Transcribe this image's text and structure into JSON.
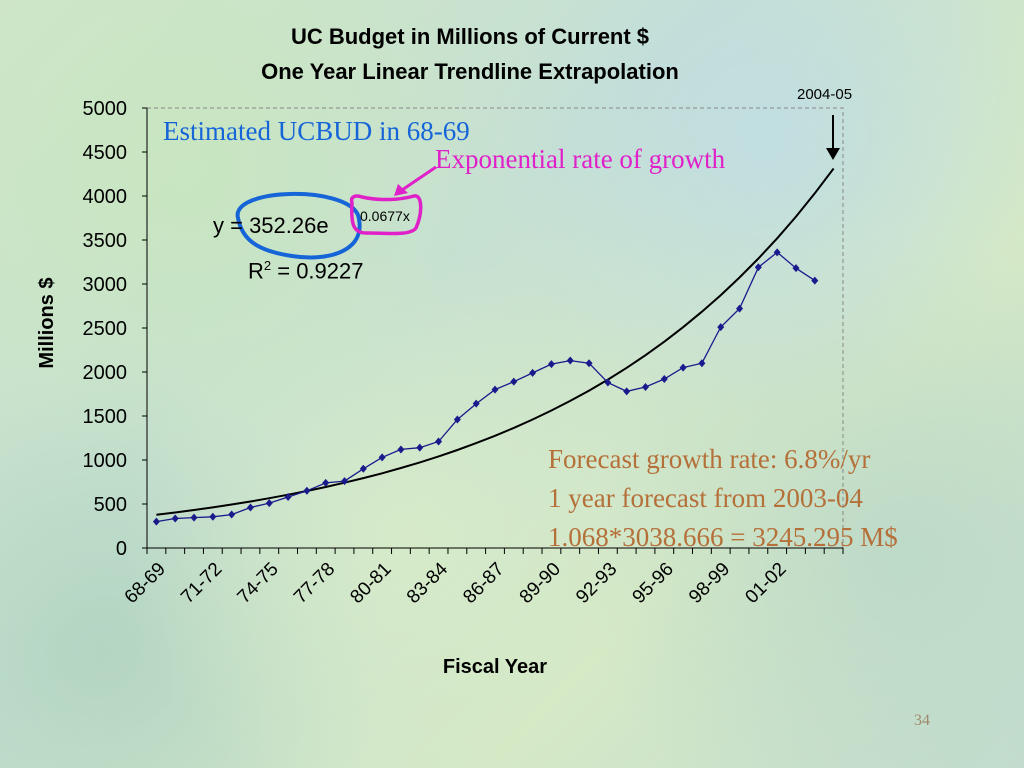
{
  "slide": {
    "title_line1": "UC Budget in Millions of Current $",
    "title_line2": "One Year Linear Trendline Extrapolation",
    "annotation_blue": "Estimated UCBUD in 68-69",
    "annotation_magenta": "Exponential rate of growth",
    "equation_main": "y = 352.26e",
    "equation_exponent": "0.0677x",
    "r2_label": "R",
    "r2_sup": "2",
    "r2_value": " = 0.9227",
    "forecast_line1": "Forecast growth rate: 6.8%/yr",
    "forecast_line2": "1 year forecast from 2003-04",
    "forecast_line3": "1.068*3038.666 = 3245.295 M$",
    "callout_year": "2004-05",
    "page_number": "34",
    "colors": {
      "series": "#1a1a8c",
      "trend": "#000000",
      "blue_annotation": "#1565d8",
      "magenta_annotation": "#e020c8",
      "forecast_text": "#b5703a"
    }
  },
  "chart_data": {
    "type": "line",
    "xlabel": "Fiscal Year",
    "ylabel": "Millions $",
    "ylim": [
      0,
      5000
    ],
    "yticks": [
      0,
      500,
      1000,
      1500,
      2000,
      2500,
      3000,
      3500,
      4000,
      4500,
      5000
    ],
    "tick_labels": [
      "68-69",
      "71-72",
      "74-75",
      "77-78",
      "80-81",
      "83-84",
      "86-87",
      "89-90",
      "92-93",
      "95-96",
      "98-99",
      "01-02"
    ],
    "tick_label_every": 3,
    "n_categories": 37,
    "grid": false,
    "series": [
      {
        "values": [
          300,
          335,
          345,
          355,
          380,
          460,
          510,
          580,
          650,
          740,
          760,
          900,
          1030,
          1120,
          1140,
          1210,
          1460,
          1640,
          1800,
          1890,
          1990,
          2090,
          2130,
          2100,
          1880,
          1780,
          1830,
          1920,
          2050,
          2100,
          2510,
          2720,
          3190,
          3360,
          3180,
          3038.666
        ]
      }
    ],
    "trendline": {
      "type": "exponential",
      "a": 352.26,
      "b": 0.0677,
      "points": 37
    }
  }
}
